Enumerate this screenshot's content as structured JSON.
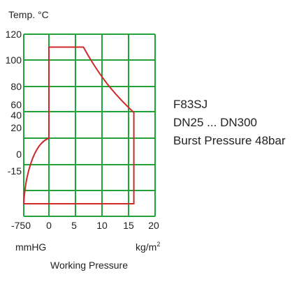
{
  "chart_data": {
    "type": "line",
    "title": "",
    "ylabel": "Temp. °C",
    "x_left_unit": "mmHG",
    "x_right_unit": "kg/m",
    "x_right_unit_sup": "2",
    "x_caption": "Working Pressure",
    "x_tick_labels": [
      "-750",
      "0",
      "5",
      "10",
      "15",
      "20"
    ],
    "y_tick_labels": [
      "120",
      "100",
      "80",
      "60",
      "40",
      "20",
      "0",
      "-15"
    ],
    "grid": true,
    "grid_color": "#22a33a",
    "series": [
      {
        "color": "#cc2a2a",
        "points": [
          {
            "p": -750,
            "t": -40
          },
          {
            "p": 0,
            "t": 20
          },
          {
            "p": 0,
            "t": 110
          },
          {
            "p": 6.5,
            "t": 110
          },
          {
            "p": 16,
            "t": 45
          },
          {
            "p": 16,
            "t": -40
          },
          {
            "p": -750,
            "t": -40
          }
        ]
      }
    ]
  },
  "info": {
    "model": "F83SJ",
    "size_range": "DN25 ... DN300",
    "burst_pressure": "Burst Pressure 48bar"
  }
}
